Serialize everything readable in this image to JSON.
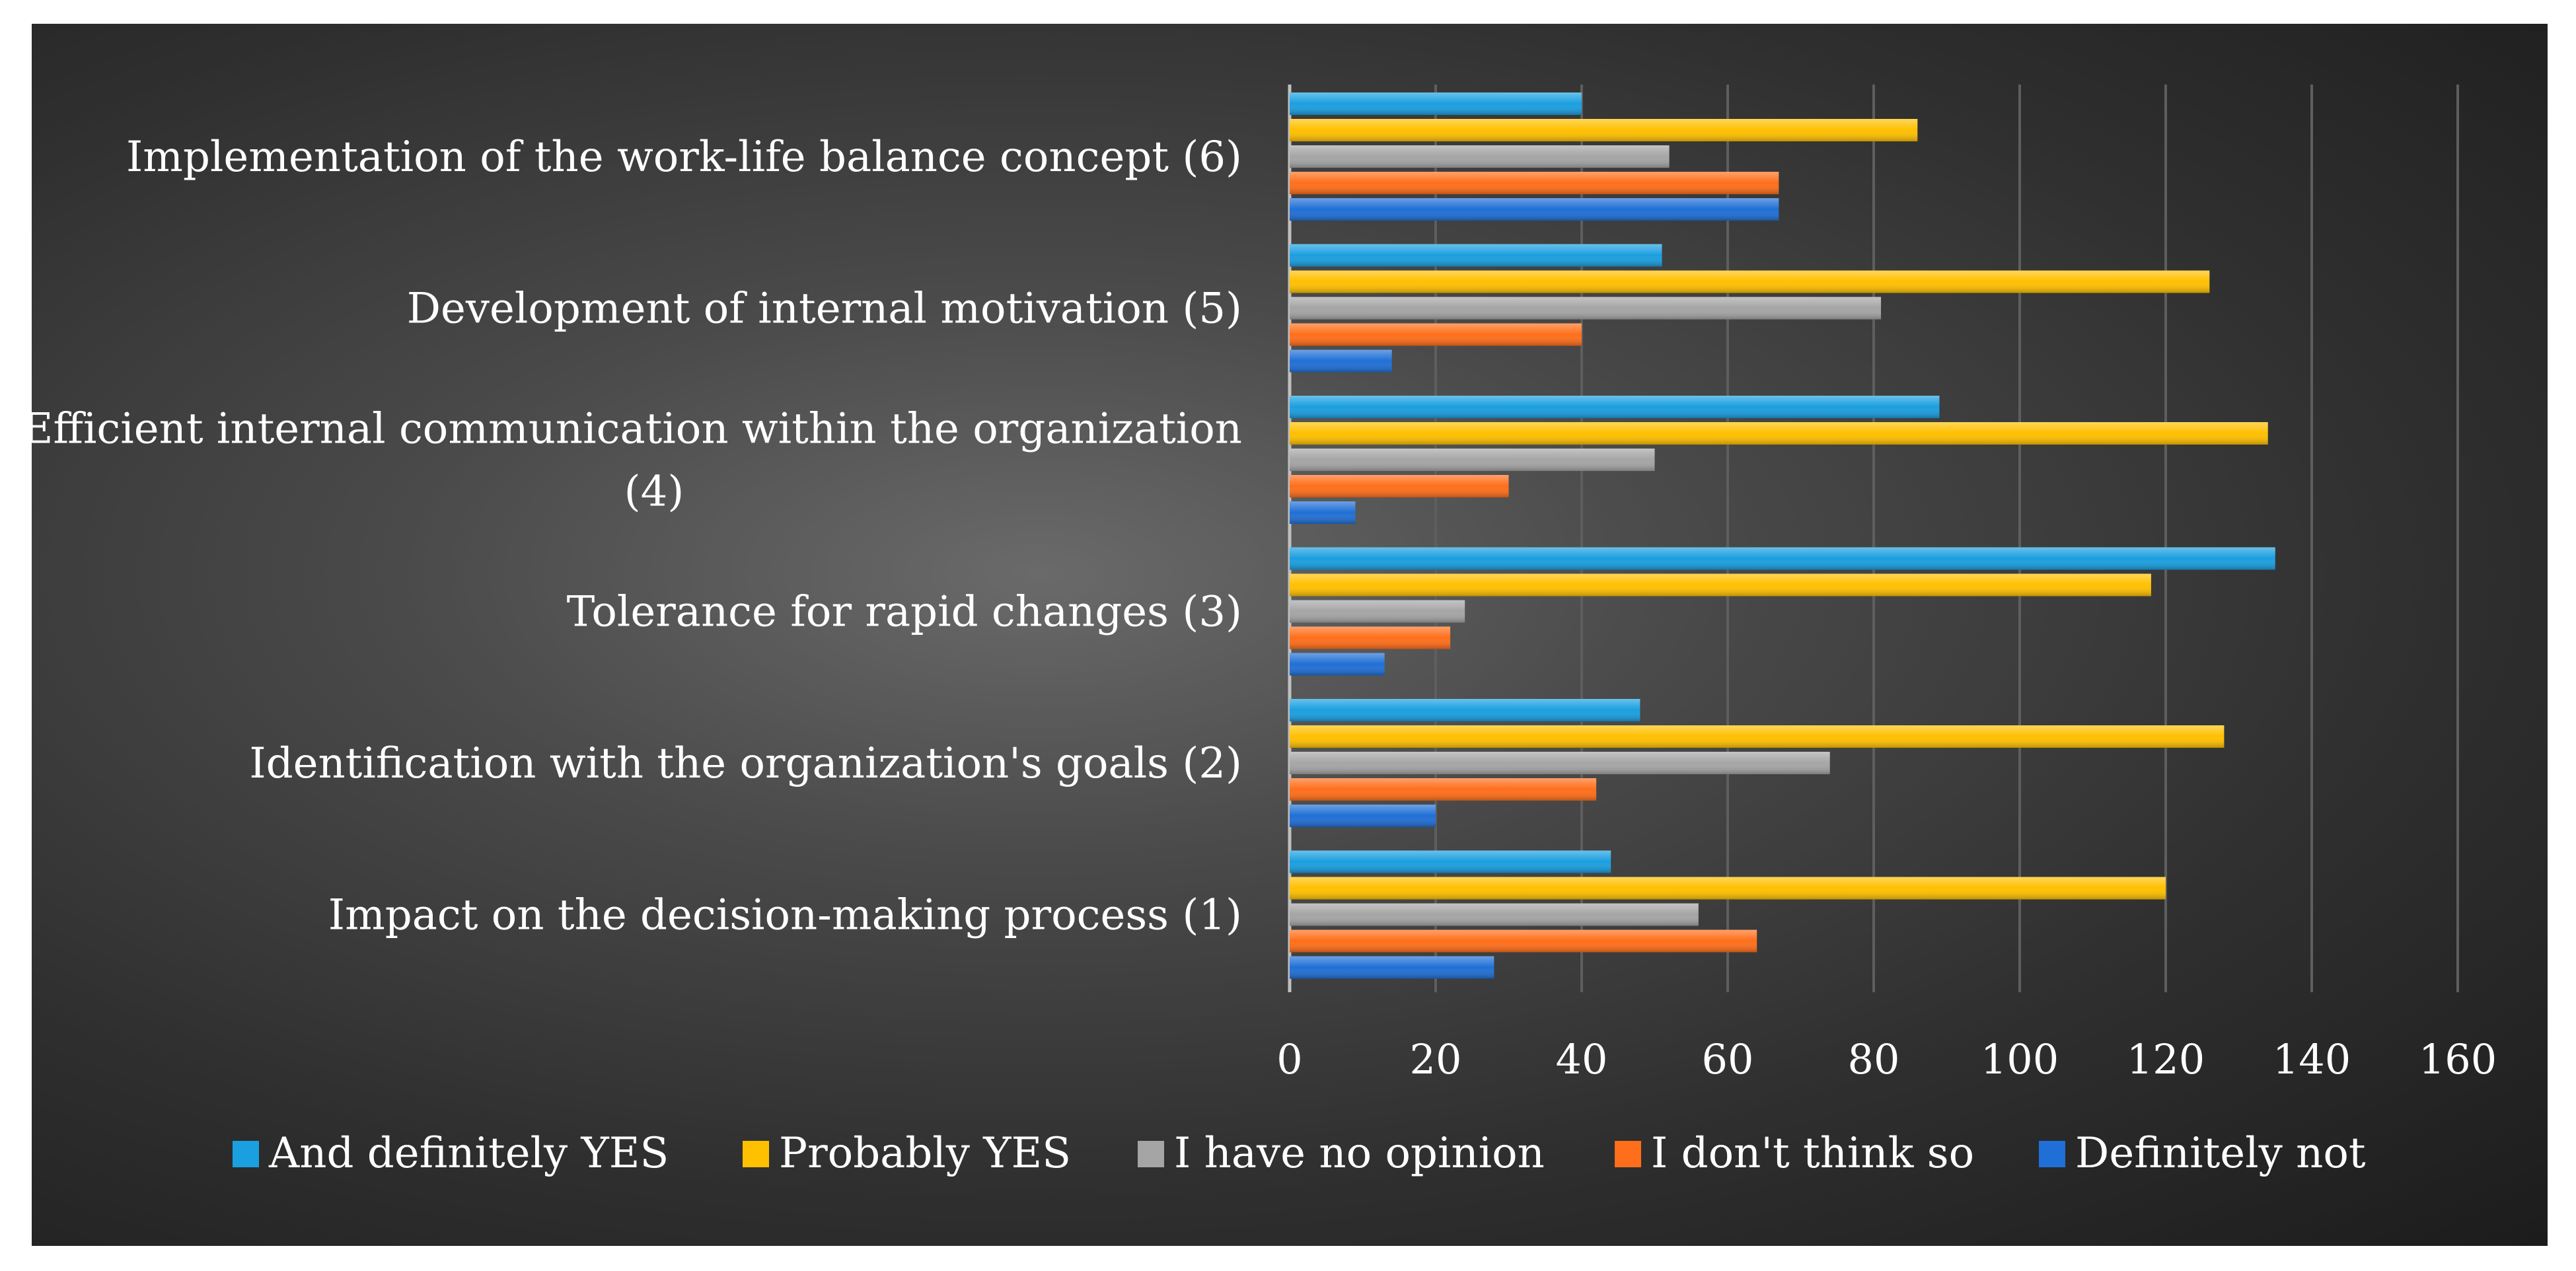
{
  "chart_data": {
    "type": "bar",
    "orientation": "horizontal",
    "title": "",
    "xlabel": "",
    "ylabel": "",
    "xlim": [
      0,
      160
    ],
    "xticks": [
      0,
      20,
      40,
      60,
      80,
      100,
      120,
      140,
      160
    ],
    "grid": true,
    "legend_position": "bottom",
    "categories": [
      [
        "Implementation of the work-life balance concept (6)"
      ],
      [
        "Development of internal motivation (5)"
      ],
      [
        "Efficient internal communication within the organization",
        "(4)"
      ],
      [
        "Tolerance for rapid changes (3)"
      ],
      [
        "Identification with the organization's goals (2)"
      ],
      [
        "Impact on the decision-making process  (1)"
      ]
    ],
    "series": [
      {
        "name": "And definitely YES",
        "color": "#1a9fe0",
        "values": [
          40,
          51,
          89,
          135,
          48,
          44
        ]
      },
      {
        "name": "Probably YES",
        "color": "#ffc000",
        "values": [
          86,
          126,
          134,
          118,
          128,
          120
        ]
      },
      {
        "name": "I have no opinion",
        "color": "#a5a5a5",
        "values": [
          52,
          81,
          50,
          24,
          74,
          56
        ]
      },
      {
        "name": "I don't think so",
        "color": "#ff6e1a",
        "values": [
          67,
          40,
          30,
          22,
          42,
          64
        ]
      },
      {
        "name": "Definitely not",
        "color": "#1f6fd6",
        "values": [
          67,
          14,
          9,
          13,
          20,
          28
        ]
      }
    ]
  }
}
